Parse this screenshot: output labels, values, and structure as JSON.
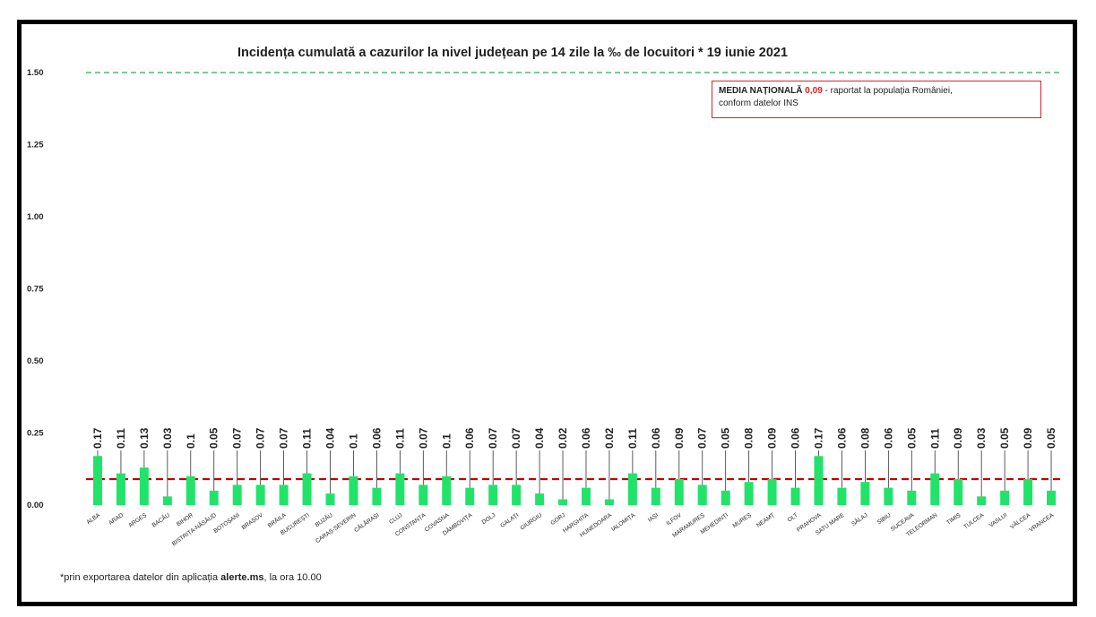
{
  "chart_data": {
    "type": "bar",
    "title": "Incidența cumulată a cazurilor la nivel județean pe 14 zile la ‰ de locuitori *  19 iunie 2021",
    "categories": [
      "ALBA",
      "ARAD",
      "ARGEȘ",
      "BACĂU",
      "BIHOR",
      "BISTRIȚA-NĂSĂUD",
      "BOTOȘANI",
      "BRAȘOV",
      "BRĂILA",
      "BUCUREȘTI",
      "BUZĂU",
      "CARAȘ-SEVERIN",
      "CĂLĂRAȘI",
      "CLUJ",
      "CONSTANȚA",
      "COVASNA",
      "DÂMBOVIȚA",
      "DOLJ",
      "GALAȚI",
      "GIURGIU",
      "GORJ",
      "HARGHITA",
      "HUNEDOARA",
      "IALOMIȚA",
      "IAȘI",
      "ILFOV",
      "MARAMUREȘ",
      "MEHEDINȚI",
      "MUREȘ",
      "NEAMȚ",
      "OLT",
      "PRAHOVA",
      "SATU MARE",
      "SĂLAJ",
      "SIBIU",
      "SUCEAVA",
      "TELEORMAN",
      "TIMIȘ",
      "TULCEA",
      "VASLUI",
      "VÂLCEA",
      "VRANCEA"
    ],
    "values": [
      0.17,
      0.11,
      0.13,
      0.03,
      0.1,
      0.05,
      0.07,
      0.07,
      0.07,
      0.11,
      0.04,
      0.1,
      0.06,
      0.11,
      0.07,
      0.1,
      0.06,
      0.07,
      0.07,
      0.04,
      0.02,
      0.06,
      0.02,
      0.11,
      0.06,
      0.09,
      0.07,
      0.05,
      0.08,
      0.09,
      0.06,
      0.17,
      0.06,
      0.08,
      0.06,
      0.05,
      0.11,
      0.09,
      0.03,
      0.05,
      0.09,
      0.05
    ],
    "data_labels": [
      "0.17",
      "0.11",
      "0.13",
      "0.03",
      "0.1",
      "0.05",
      "0.07",
      "0.07",
      "0.07",
      "0.11",
      "0.04",
      "0.1",
      "0.06",
      "0.11",
      "0.07",
      "0.1",
      "0.06",
      "0.07",
      "0.07",
      "0.04",
      "0.02",
      "0.06",
      "0.02",
      "0.11",
      "0.06",
      "0.09",
      "0.07",
      "0.05",
      "0.08",
      "0.09",
      "0.06",
      "0.17",
      "0.06",
      "0.08",
      "0.06",
      "0.05",
      "0.11",
      "0.09",
      "0.03",
      "0.05",
      "0.09",
      "0.05"
    ],
    "ylim": [
      0,
      1.5
    ],
    "yticks": [
      "0.00",
      "0.25",
      "0.50",
      "0.75",
      "1.00",
      "1.25",
      "1.50"
    ],
    "ytick_values": [
      0,
      0.25,
      0.5,
      0.75,
      1.0,
      1.25,
      1.5
    ],
    "reference_lines": [
      {
        "value": 0.09,
        "color": "#c00000",
        "style": "dashed"
      },
      {
        "value": 1.5,
        "color": "#2eaa57",
        "style": "dashed"
      }
    ],
    "bar_color": "#22e36a",
    "grid": false,
    "legend_placement": "top-right"
  },
  "legend": {
    "strong": "MEDIA NAȚIONALĂ",
    "value": "0,09",
    "rest": " - raportat la populația României,",
    "line2": "conform datelor INS"
  },
  "footnote": {
    "prefix": "*prin exportarea datelor din aplicația ",
    "bold": "alerte.ms",
    "suffix": ", la ora 10.00"
  },
  "colors": {
    "bar": "#22e36a",
    "average_line": "#c00000",
    "max_line": "#2eaa57",
    "legend_border": "#d62728",
    "legend_value": "#e02020"
  }
}
